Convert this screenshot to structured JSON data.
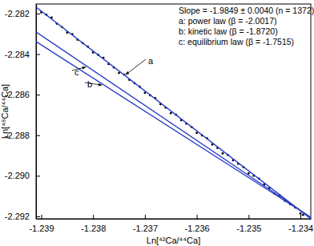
{
  "chart_data": {
    "type": "scatter",
    "x_label": "Ln[⁴²Ca/⁴⁴Ca]",
    "y_label": "Ln[⁴⁸Ca/⁴⁴Ca]",
    "annotations": [
      "Slope = -1.9849 ± 0.0040 (n = 1372)",
      "a: power law (β = -2.0017)",
      "b: kinetic law (β = -1.8720)",
      "c: equilibrium law (β = -1.7515)"
    ],
    "xlim": [
      -1.2391,
      -1.2338
    ],
    "ylim": [
      -2.29212,
      -2.28153
    ],
    "xticks": [
      -1.239,
      -1.238,
      -1.237,
      -1.236,
      -1.235,
      -1.234
    ],
    "yticks": [
      -2.282,
      -2.284,
      -2.286,
      -2.288,
      {
        "value": -2.29,
        "label": "-2.290"
      },
      -2.292
    ],
    "series": [
      {
        "type": "scatter",
        "color": "#000000",
        "marker": "circle",
        "x": [
          -1.2391,
          -1.239,
          -1.2389,
          -1.2388,
          -1.2387,
          -1.2386,
          -1.2385,
          -1.2384,
          -1.2383,
          -1.2382,
          -1.2381,
          -1.238,
          -1.2379,
          -1.2378,
          -1.2377,
          -1.2376,
          -1.2375,
          -1.2374,
          -1.2373,
          -1.2372,
          -1.2371,
          -1.237,
          -1.2369,
          -1.2368,
          -1.2367,
          -1.2366,
          -1.2365,
          -1.2364,
          -1.2363,
          -1.2362,
          -1.2361,
          -1.236,
          -1.2359,
          -1.2358,
          -1.2357,
          -1.2356,
          -1.2355,
          -1.2354,
          -1.2353,
          -1.2352,
          -1.2351,
          -1.235,
          -1.2349,
          -1.2348,
          -1.2347,
          -1.2346,
          -1.2345,
          -1.2344,
          -1.2343,
          -1.2342,
          -1.2341,
          -1.234,
          -1.23395
        ],
        "values": [
          -2.28164,
          -2.28194,
          -2.28206,
          -2.2822,
          -2.2825,
          -2.28267,
          -2.28294,
          -2.28302,
          -2.28329,
          -2.28346,
          -2.28363,
          -2.28392,
          -2.28404,
          -2.28418,
          -2.28449,
          -2.28466,
          -2.28493,
          -2.28501,
          -2.28527,
          -2.28544,
          -2.28561,
          -2.28591,
          -2.28603,
          -2.28617,
          -2.28647,
          -2.28664,
          -2.28691,
          -2.28699,
          -2.28726,
          -2.28743,
          -2.2876,
          -2.28789,
          -2.28801,
          -2.28815,
          -2.28846,
          -2.28863,
          -2.2889,
          -2.28897,
          -2.28924,
          -2.28941,
          -2.28958,
          -2.28988,
          -2.29,
          -2.29014,
          -2.29044,
          -2.29061,
          -2.29088,
          -2.29096,
          -2.29123,
          -2.2914,
          -2.29157,
          -2.29186,
          -2.29193
        ]
      },
      {
        "name": "a",
        "type": "line",
        "color": "#2b3fc4",
        "line_style": "solid",
        "x": [
          -1.2391,
          -1.2338
        ],
        "values": [
          -2.28168,
          -2.29212
        ]
      },
      {
        "name": "b",
        "type": "line",
        "color": "#2b3fc4",
        "line_style": "solid",
        "x": [
          -1.2391,
          -1.2338
        ],
        "values": [
          -2.28338,
          -2.29205
        ]
      },
      {
        "name": "c",
        "type": "line",
        "color": "#2b3fc4",
        "line_style": "solid",
        "x": [
          -1.2391,
          -1.2338
        ],
        "values": [
          -2.28291,
          -2.29205
        ]
      }
    ]
  }
}
